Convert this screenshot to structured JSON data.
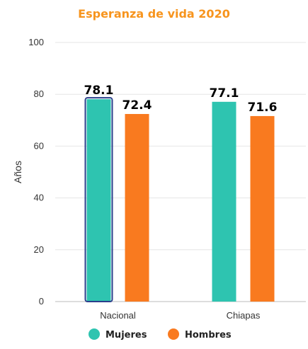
{
  "colors": {
    "title": "#F7941D",
    "mujeres": "#2EC4B0",
    "hombres": "#F97A1F",
    "highlight_border": "#2B3F8C",
    "grid": "#E6E6E6",
    "axis_line": "#BBBBBB"
  },
  "chart_data": {
    "type": "bar",
    "title": "Esperanza de vida 2020",
    "xlabel": "",
    "ylabel": "Años",
    "ylim": [
      0,
      100
    ],
    "yticks": [
      0,
      20,
      40,
      60,
      80,
      100
    ],
    "grid": true,
    "legend_position": "bottom-center",
    "categories": [
      "Nacional",
      "Chiapas"
    ],
    "series": [
      {
        "name": "Mujeres",
        "values": [
          78.1,
          77.1
        ],
        "labels": [
          "78.1",
          "77.1"
        ]
      },
      {
        "name": "Hombres",
        "values": [
          72.4,
          71.6
        ],
        "labels": [
          "72.4",
          "71.6"
        ]
      }
    ],
    "highlighted": {
      "series": 0,
      "category": 0
    }
  }
}
